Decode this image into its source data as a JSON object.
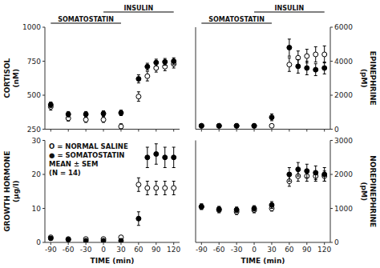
{
  "chart_data": [
    {
      "type": "scatter",
      "ylabel": "CORTISOL\n(nM)",
      "x": [
        -90,
        -60,
        -30,
        0,
        30,
        60,
        75,
        90,
        105,
        120
      ],
      "series": [
        {
          "color": "white",
          "marker": "circle",
          "values": [
            415,
            330,
            320,
            320,
            270,
            490,
            640,
            700,
            710,
            730
          ],
          "errors": [
            25,
            20,
            20,
            20,
            20,
            35,
            35,
            30,
            30,
            30
          ]
        },
        {
          "color": "black",
          "marker": "circle",
          "values": [
            430,
            360,
            360,
            365,
            370,
            620,
            710,
            740,
            745,
            750
          ],
          "errors": [
            20,
            20,
            20,
            20,
            20,
            30,
            25,
            25,
            25,
            25
          ]
        }
      ],
      "xlim": [
        -100,
        130
      ],
      "xticks": [
        -90,
        -60,
        -30,
        0,
        30,
        60,
        90,
        120
      ],
      "ylim": [
        250,
        1000
      ],
      "yticks": [
        250,
        500,
        750,
        1000
      ],
      "tick_labels": "y",
      "annotations": [
        {
          "text": "SOMATOSTATIN",
          "start": -90,
          "end": 30
        },
        {
          "text": "INSULIN",
          "start": 0,
          "end": 120
        }
      ]
    },
    {
      "type": "scatter",
      "ylabel": "EPINEPHRINE\n(pM)",
      "x": [
        -90,
        -60,
        -30,
        0,
        30,
        60,
        75,
        90,
        105,
        120
      ],
      "series": [
        {
          "color": "white",
          "marker": "circle",
          "values": [
            200,
            200,
            200,
            200,
            200,
            3800,
            4200,
            4300,
            4400,
            4400
          ],
          "errors": [
            50,
            50,
            50,
            50,
            50,
            400,
            400,
            400,
            450,
            500
          ]
        },
        {
          "color": "black",
          "marker": "circle",
          "values": [
            200,
            200,
            200,
            200,
            700,
            4800,
            3700,
            3600,
            3500,
            3600
          ],
          "errors": [
            50,
            50,
            50,
            50,
            200,
            500,
            400,
            400,
            350,
            350
          ]
        }
      ],
      "xlim": [
        -100,
        130
      ],
      "xticks": [
        -90,
        -60,
        -30,
        0,
        30,
        60,
        90,
        120
      ],
      "ylim": [
        0,
        6000
      ],
      "yticks": [
        0,
        2000,
        4000,
        6000
      ],
      "tick_labels": "y",
      "annotations": [
        {
          "text": "SOMATOSTATIN",
          "start": -90,
          "end": 30
        },
        {
          "text": "INSULIN",
          "start": 0,
          "end": 120
        }
      ]
    },
    {
      "type": "scatter",
      "ylabel": "GROWTH HORMONE\n(μg/l)",
      "xlabel": "TIME (min)",
      "x": [
        -90,
        -60,
        -30,
        0,
        30,
        60,
        75,
        90,
        105,
        120
      ],
      "series": [
        {
          "color": "white",
          "marker": "circle",
          "values": [
            1.5,
            1.0,
            1.0,
            1.0,
            1.5,
            17,
            16,
            16,
            16,
            16
          ],
          "errors": [
            0.3,
            0.3,
            0.3,
            0.3,
            0.5,
            2.0,
            2.0,
            2.0,
            2.0,
            2.0
          ]
        },
        {
          "color": "black",
          "marker": "circle",
          "values": [
            1.2,
            0.8,
            0.5,
            0.5,
            0.5,
            7.0,
            25,
            26,
            25,
            25
          ],
          "errors": [
            0.3,
            0.2,
            0.2,
            0.2,
            0.2,
            2.0,
            3.0,
            3.0,
            3.0,
            3.0
          ]
        }
      ],
      "xlim": [
        -100,
        130
      ],
      "xticks": [
        -90,
        -60,
        -30,
        0,
        30,
        60,
        90,
        120
      ],
      "ylim": [
        0,
        30
      ],
      "yticks": [
        0,
        10,
        20,
        30
      ],
      "annotations": [
        {
          "text": "O = NORMAL SALINE"
        },
        {
          "text": "● = SOMATOSTATIN"
        },
        {
          "text": "MEAN ± SEM"
        },
        {
          "text": "(N = 14)"
        }
      ]
    },
    {
      "type": "scatter",
      "ylabel": "NOREPINEPHRINE\n(pM)",
      "xlabel": "TIME (min)",
      "x": [
        -90,
        -60,
        -30,
        0,
        30,
        60,
        75,
        90,
        105,
        120
      ],
      "series": [
        {
          "color": "white",
          "marker": "circle",
          "values": [
            1050,
            950,
            900,
            950,
            1000,
            1800,
            1950,
            1950,
            1950,
            1950
          ],
          "errors": [
            80,
            80,
            80,
            80,
            80,
            150,
            150,
            150,
            150,
            150
          ]
        },
        {
          "color": "black",
          "marker": "circle",
          "values": [
            1050,
            980,
            960,
            1000,
            1100,
            2000,
            2150,
            2100,
            2050,
            2000
          ],
          "errors": [
            80,
            80,
            80,
            80,
            100,
            200,
            200,
            200,
            200,
            200
          ]
        }
      ],
      "xlim": [
        -100,
        130
      ],
      "xticks": [
        -90,
        -60,
        -30,
        0,
        30,
        60,
        90,
        120
      ],
      "ylim": [
        0,
        3000
      ],
      "yticks": [
        0,
        1000,
        2000,
        3000
      ]
    }
  ]
}
